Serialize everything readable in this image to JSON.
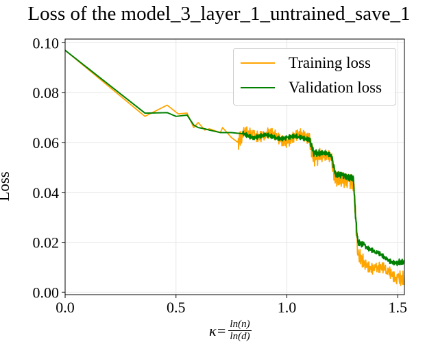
{
  "chart_data": {
    "type": "line",
    "title": "Loss of the model_3_layer_1_untrained_save_1",
    "xlabel_symbol": "κ=",
    "xlabel_numerator": "ln(n)",
    "xlabel_denominator": "ln(d)",
    "ylabel": "Loss",
    "xlim": [
      0.0,
      1.53
    ],
    "ylim": [
      -0.001,
      0.1015
    ],
    "x_ticks": [
      0.0,
      0.5,
      1.0,
      1.5
    ],
    "x_tick_labels": [
      "0.0",
      "0.5",
      "1.0",
      "1.5"
    ],
    "y_ticks": [
      0.0,
      0.02,
      0.04,
      0.06,
      0.08,
      0.1
    ],
    "y_tick_labels": [
      "0.00",
      "0.02",
      "0.04",
      "0.06",
      "0.08",
      "0.10"
    ],
    "grid": true,
    "legend_position": "top-right",
    "series": [
      {
        "name": "Training loss",
        "color": "#FFA500",
        "x": [
          0.0,
          0.36,
          0.46,
          0.51,
          0.55,
          0.58,
          0.6,
          0.63,
          0.65,
          0.7,
          0.71,
          0.75,
          0.78,
          0.8,
          0.85,
          0.9,
          0.95,
          1.0,
          1.05,
          1.1,
          1.12,
          1.15,
          1.2,
          1.22,
          1.25,
          1.28,
          1.3,
          1.31,
          1.32,
          1.35,
          1.4,
          1.45,
          1.5,
          1.53
        ],
        "y": [
          0.097,
          0.0705,
          0.075,
          0.0715,
          0.0718,
          0.066,
          0.068,
          0.065,
          0.0655,
          0.064,
          0.066,
          0.062,
          0.06,
          0.063,
          0.064,
          0.063,
          0.062,
          0.0615,
          0.062,
          0.062,
          0.054,
          0.0545,
          0.053,
          0.045,
          0.045,
          0.045,
          0.044,
          0.03,
          0.015,
          0.012,
          0.01,
          0.008,
          0.006,
          0.005
        ]
      },
      {
        "name": "Validation loss",
        "color": "#008000",
        "x": [
          0.0,
          0.36,
          0.46,
          0.5,
          0.55,
          0.58,
          0.6,
          0.63,
          0.65,
          0.7,
          0.75,
          0.8,
          0.85,
          0.9,
          0.95,
          1.0,
          1.05,
          1.1,
          1.12,
          1.15,
          1.2,
          1.22,
          1.25,
          1.28,
          1.3,
          1.31,
          1.32,
          1.35,
          1.4,
          1.45,
          1.5,
          1.53
        ],
        "y": [
          0.097,
          0.0718,
          0.072,
          0.0705,
          0.071,
          0.067,
          0.066,
          0.0655,
          0.065,
          0.064,
          0.064,
          0.0635,
          0.0625,
          0.0625,
          0.0622,
          0.062,
          0.062,
          0.0618,
          0.056,
          0.0555,
          0.055,
          0.047,
          0.047,
          0.046,
          0.046,
          0.03,
          0.02,
          0.019,
          0.016,
          0.013,
          0.012,
          0.0118
        ]
      }
    ]
  }
}
